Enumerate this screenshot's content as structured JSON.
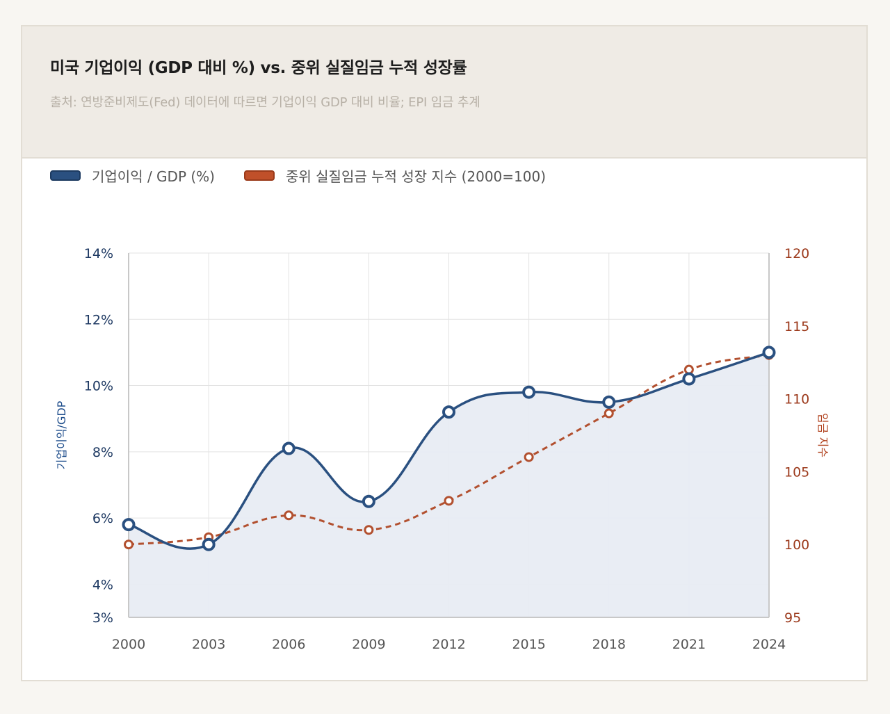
{
  "header": {
    "title": "미국 기업이익 (GDP 대비 %) vs. 중위 실질임금 누적 성장률",
    "subtitle": "출처: 연방준비제도(Fed) 데이터에 따르면 기업이익 GDP 대비 비율; EPI 임금 추계"
  },
  "legend": [
    {
      "label": "기업이익 / GDP (%)",
      "color": "#2a5080"
    },
    {
      "label": "중위 실질임금 누적 성장 지수 (2000=100)",
      "color": "#c0502a"
    }
  ],
  "colors": {
    "profit_line": "#2a5080",
    "profit_fill": "#e8ecf3",
    "wage_line": "#b2502f",
    "grid": "#e3e3e3"
  },
  "chart_data": {
    "type": "line",
    "title": "미국 기업이익 (GDP 대비 %) vs. 중위 실질임금 누적 성장률",
    "x": [
      "2000",
      "2003",
      "2006",
      "2009",
      "2012",
      "2015",
      "2018",
      "2021",
      "2024"
    ],
    "left_axis": {
      "label": "기업이익/GDP",
      "ticks": [
        "3%",
        "4%",
        "6%",
        "8%",
        "10%",
        "12%",
        "14%"
      ],
      "tick_values": [
        3,
        4,
        6,
        8,
        10,
        12,
        14
      ],
      "ylim": [
        3,
        14
      ]
    },
    "right_axis": {
      "label": "임금 지수",
      "ticks": [
        "95",
        "100",
        "105",
        "110",
        "115",
        "120"
      ],
      "tick_values": [
        95,
        100,
        105,
        110,
        115,
        120
      ],
      "ylim": [
        95,
        120
      ]
    },
    "series": [
      {
        "name": "기업이익 / GDP (%)",
        "axis": "left",
        "style": "solid-smooth-area",
        "values": [
          5.8,
          5.2,
          8.1,
          6.5,
          9.2,
          9.8,
          9.5,
          10.2,
          11.0
        ]
      },
      {
        "name": "중위 실질임금 누적 성장 지수 (2000=100)",
        "axis": "right",
        "style": "dashed-smooth",
        "values": [
          100,
          100.5,
          102,
          101,
          103,
          106,
          109,
          112,
          113
        ]
      }
    ],
    "grid": true,
    "legend_position": "top-left"
  }
}
